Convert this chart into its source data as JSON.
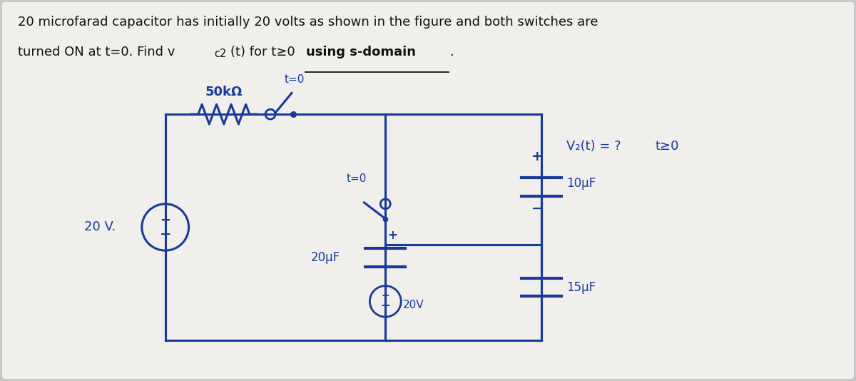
{
  "bg_color": "#c8c8c8",
  "paper_color": "#f0efeb",
  "title_line1": "20 microfarad capacitor has initially 20 volts as shown in the figure and both switches are",
  "title_line2a": "turned ON at t=0. Find v",
  "title_line2_sub": "c2",
  "title_line2b": "(t) for t≥0 ",
  "title_underline_text": "using s-domain",
  "title_fontsize": 13.0,
  "circuit_color": "#1a3a9a",
  "text_color_black": "#111111",
  "resistor_label": "50kΩ",
  "switch1_label": "t=0",
  "cap1_label": "10μF",
  "vc2_full": "V₂(t) = ?",
  "t_geq": "t≥0",
  "switch2_label": "t=0",
  "cap2_label": "20μF",
  "vs_inner_label": "20V",
  "cap3_label": "15μF",
  "vs_left_label": "20 V.",
  "plus": "+",
  "minus": "−"
}
